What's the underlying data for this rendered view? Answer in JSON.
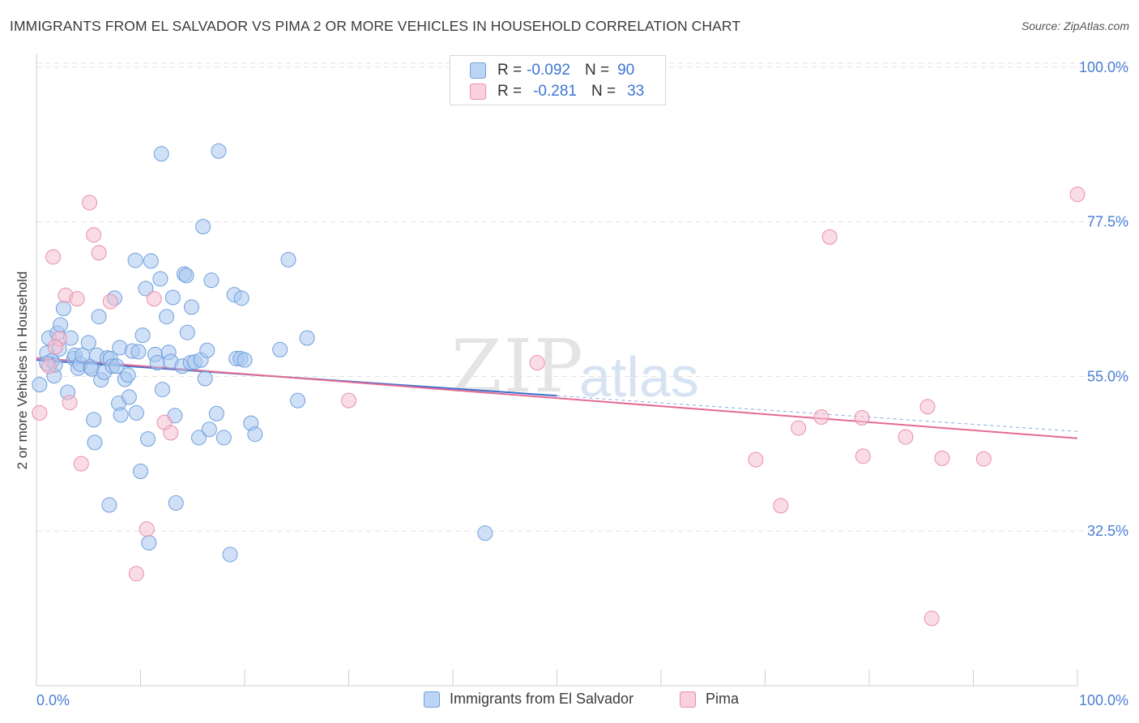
{
  "title": "IMMIGRANTS FROM EL SALVADOR VS PIMA 2 OR MORE VEHICLES IN HOUSEHOLD CORRELATION CHART",
  "source": "Source: ZipAtlas.com",
  "watermark": {
    "zip": "ZIP",
    "atlas": "atlas"
  },
  "legend_box": {
    "rows": [
      {
        "r_label": "R =",
        "r_value": "-0.092",
        "n_label": "N =",
        "n_value": "90"
      },
      {
        "r_label": "R =",
        "r_value": "-0.281",
        "n_label": "N =",
        "n_value": "33"
      }
    ]
  },
  "chart_data": {
    "type": "scatter",
    "title": "IMMIGRANTS FROM EL SALVADOR VS PIMA 2 OR MORE VEHICLES IN HOUSEHOLD CORRELATION CHART",
    "xlabel": "",
    "ylabel": "2 or more Vehicles in Household",
    "xlim": [
      0,
      100
    ],
    "ylim": [
      10,
      102
    ],
    "x_tick_labels": [
      "0.0%",
      "100.0%"
    ],
    "y_ticks": [
      32.5,
      55.0,
      77.5,
      100.0
    ],
    "y_tick_labels": [
      "32.5%",
      "55.0%",
      "77.5%",
      "100.0%"
    ],
    "grid": true,
    "legend_placement": "bottom",
    "colors": {
      "blue_fill": "#a9c8f0",
      "blue_stroke": "#6f9fdc",
      "blue_line": "#3a6fcf",
      "pink_fill": "#f6bfd0",
      "pink_stroke": "#e98fac",
      "pink_line": "#e46b94",
      "tick_label": "#4a7ed6",
      "grid": "#e2e2e2"
    },
    "series": [
      {
        "name": "Immigrants from El Salvador",
        "trend": {
          "x": [
            0,
            50
          ],
          "y": [
            57.4,
            52.2
          ]
        },
        "points": [
          [
            1.0,
            58.4
          ],
          [
            1.2,
            60.6
          ],
          [
            1.5,
            57.3
          ],
          [
            1.7,
            55.1
          ],
          [
            1.8,
            56.7
          ],
          [
            2.2,
            59.0
          ],
          [
            2.0,
            61.3
          ],
          [
            2.3,
            62.5
          ],
          [
            2.6,
            64.9
          ],
          [
            3.0,
            52.7
          ],
          [
            3.3,
            60.6
          ],
          [
            3.6,
            57.6
          ],
          [
            3.7,
            58.1
          ],
          [
            4.0,
            56.2
          ],
          [
            4.2,
            56.8
          ],
          [
            4.4,
            58.1
          ],
          [
            5.0,
            59.9
          ],
          [
            5.2,
            56.4
          ],
          [
            5.3,
            56.1
          ],
          [
            5.5,
            48.7
          ],
          [
            5.6,
            45.4
          ],
          [
            5.8,
            58.1
          ],
          [
            6.0,
            63.7
          ],
          [
            6.2,
            54.5
          ],
          [
            6.5,
            55.6
          ],
          [
            6.8,
            57.7
          ],
          [
            7.0,
            36.3
          ],
          [
            7.1,
            57.6
          ],
          [
            7.3,
            56.5
          ],
          [
            7.5,
            66.4
          ],
          [
            7.7,
            56.5
          ],
          [
            7.9,
            51.1
          ],
          [
            8.0,
            59.2
          ],
          [
            8.1,
            49.4
          ],
          [
            8.5,
            54.6
          ],
          [
            8.8,
            55.2
          ],
          [
            8.9,
            52.0
          ],
          [
            9.2,
            58.7
          ],
          [
            9.5,
            71.9
          ],
          [
            9.6,
            49.7
          ],
          [
            9.8,
            58.6
          ],
          [
            10.0,
            41.2
          ],
          [
            10.2,
            61.0
          ],
          [
            10.5,
            67.8
          ],
          [
            10.7,
            45.9
          ],
          [
            10.8,
            30.8
          ],
          [
            11.0,
            71.8
          ],
          [
            11.4,
            58.2
          ],
          [
            11.6,
            57.0
          ],
          [
            11.9,
            69.2
          ],
          [
            12.0,
            87.4
          ],
          [
            12.1,
            53.1
          ],
          [
            12.5,
            63.7
          ],
          [
            12.7,
            58.5
          ],
          [
            12.9,
            57.2
          ],
          [
            13.1,
            66.5
          ],
          [
            13.3,
            49.3
          ],
          [
            13.4,
            36.6
          ],
          [
            14.0,
            56.5
          ],
          [
            14.2,
            69.9
          ],
          [
            14.4,
            69.7
          ],
          [
            14.5,
            61.4
          ],
          [
            14.8,
            57.0
          ],
          [
            14.9,
            65.1
          ],
          [
            15.2,
            57.1
          ],
          [
            15.6,
            46.1
          ],
          [
            15.8,
            57.4
          ],
          [
            16.0,
            76.8
          ],
          [
            16.2,
            54.7
          ],
          [
            16.4,
            58.8
          ],
          [
            16.6,
            47.3
          ],
          [
            16.8,
            69.0
          ],
          [
            17.3,
            49.6
          ],
          [
            17.5,
            87.8
          ],
          [
            18.0,
            46.1
          ],
          [
            18.6,
            29.1
          ],
          [
            19.0,
            66.9
          ],
          [
            19.2,
            57.6
          ],
          [
            19.6,
            57.6
          ],
          [
            19.7,
            66.4
          ],
          [
            20.0,
            57.4
          ],
          [
            20.6,
            48.2
          ],
          [
            21.0,
            46.6
          ],
          [
            23.4,
            58.9
          ],
          [
            24.2,
            72.0
          ],
          [
            25.1,
            51.5
          ],
          [
            26.0,
            60.6
          ],
          [
            43.1,
            32.2
          ],
          [
            0.3,
            53.8
          ],
          [
            1.0,
            56.9
          ]
        ]
      },
      {
        "name": "Pima",
        "trend": {
          "x": [
            0,
            100
          ],
          "y": [
            57.7,
            46.0
          ]
        },
        "points": [
          [
            0.3,
            49.7
          ],
          [
            1.2,
            56.5
          ],
          [
            1.6,
            72.4
          ],
          [
            2.2,
            60.5
          ],
          [
            2.8,
            66.8
          ],
          [
            3.2,
            51.2
          ],
          [
            3.9,
            66.3
          ],
          [
            4.3,
            42.3
          ],
          [
            5.1,
            80.3
          ],
          [
            5.5,
            75.6
          ],
          [
            6.0,
            73.0
          ],
          [
            7.1,
            65.9
          ],
          [
            9.6,
            26.3
          ],
          [
            10.6,
            32.8
          ],
          [
            11.3,
            66.3
          ],
          [
            12.3,
            48.3
          ],
          [
            12.9,
            46.8
          ],
          [
            30.0,
            51.5
          ],
          [
            48.1,
            57.0
          ],
          [
            69.1,
            42.9
          ],
          [
            71.5,
            36.2
          ],
          [
            73.2,
            47.5
          ],
          [
            75.4,
            49.1
          ],
          [
            76.2,
            75.3
          ],
          [
            79.3,
            49.0
          ],
          [
            79.4,
            43.4
          ],
          [
            83.5,
            46.2
          ],
          [
            85.6,
            50.6
          ],
          [
            86.0,
            19.8
          ],
          [
            87.0,
            43.1
          ],
          [
            91.0,
            43.0
          ],
          [
            100.0,
            81.5
          ],
          [
            1.8,
            59.3
          ]
        ]
      }
    ]
  }
}
